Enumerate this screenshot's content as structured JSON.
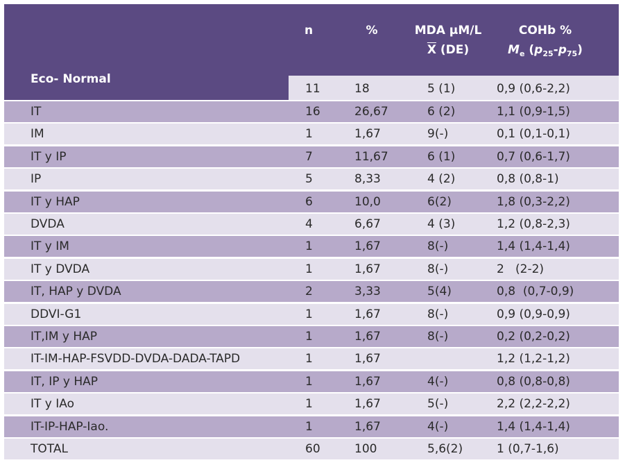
{
  "header": {
    "n": "n",
    "pct": "%",
    "mda_line1": "MDA µM/L",
    "mda_x": "X",
    "mda_de": " (DE)",
    "cohb_line1": "COHb %",
    "cohb_m": "M",
    "cohb_e": "e",
    "cohb_paren_open": " (",
    "cohb_p1": "p",
    "cohb_p1_sub": "25",
    "cohb_dash": "-",
    "cohb_p2": "p",
    "cohb_p2_sub": "75",
    "cohb_paren_close": ")"
  },
  "colors": {
    "header": "#5b4a82",
    "row_dark": "#b7aaca",
    "row_light": "#e4e0ec"
  },
  "rows": [
    {
      "label": "Eco- Normal",
      "n": "11",
      "pct": "18",
      "mda": "5 (1)",
      "cohb": "0,9 (0,6-2,2)"
    },
    {
      "label": "IT",
      "n": "16",
      "pct": "26,67",
      "mda": "6 (2)",
      "cohb": "1,1 (0,9-1,5)"
    },
    {
      "label": "IM",
      "n": "1",
      "pct": "1,67",
      "mda": "9(-)",
      "cohb": "0,1 (0,1-0,1)"
    },
    {
      "label": "IT y IP",
      "n": "7",
      "pct": "11,67",
      "mda": "6 (1)",
      "cohb": "0,7 (0,6-1,7)"
    },
    {
      "label": "IP",
      "n": "5",
      "pct": "8,33",
      "mda": "4 (2)",
      "cohb": "0,8 (0,8-1)"
    },
    {
      "label": "IT y HAP",
      "n": "6",
      "pct": "10,0",
      "mda": "6(2)",
      "cohb": "1,8 (0,3-2,2)"
    },
    {
      "label": "DVDA",
      "n": "4",
      "pct": "6,67",
      "mda": "4 (3)",
      "cohb": "1,2 (0,8-2,3)"
    },
    {
      "label": "IT y IM",
      "n": "1",
      "pct": "1,67",
      "mda": "8(-)",
      "cohb": "1,4 (1,4-1,4)"
    },
    {
      "label": "IT y DVDA",
      "n": "1",
      "pct": "1,67",
      "mda": "8(-)",
      "cohb": "2   (2-2)"
    },
    {
      "label": "IT, HAP y DVDA",
      "n": "2",
      "pct": "3,33",
      "mda": "5(4)",
      "cohb": "0,8  (0,7-0,9)"
    },
    {
      "label": "DDVI-G1",
      "n": "1",
      "pct": "1,67",
      "mda": "8(-)",
      "cohb": "0,9 (0,9-0,9)"
    },
    {
      "label": "IT,IM y HAP",
      "n": "1",
      "pct": "1,67",
      "mda": "8(-)",
      "cohb": "0,2 (0,2-0,2)"
    },
    {
      "label": "IT-IM-HAP-FSVDD-DVDA-DADA-TAPD",
      "n": "1",
      "pct": "1,67",
      "mda": "",
      "cohb": "1,2 (1,2-1,2)"
    },
    {
      "label": "IT, IP y HAP",
      "n": "1",
      "pct": "1,67",
      "mda": "4(-)",
      "cohb": "0,8 (0,8-0,8)"
    },
    {
      "label": "IT y IAo",
      "n": "1",
      "pct": "1,67",
      "mda": "5(-)",
      "cohb": "2,2 (2,2-2,2)"
    },
    {
      "label": "IT-IP-HAP-Iao.",
      "n": "1",
      "pct": "1,67",
      "mda": "4(-)",
      "cohb": "1,4 (1,4-1,4)"
    },
    {
      "label": "TOTAL",
      "n": "60",
      "pct": "100",
      "mda": "5,6(2)",
      "cohb": "1 (0,7-1,6)"
    }
  ]
}
